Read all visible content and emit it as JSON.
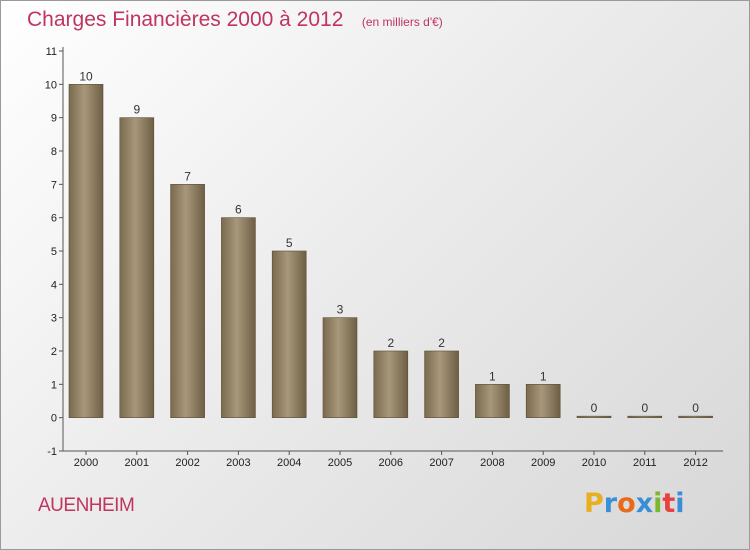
{
  "title": "Charges Financières 2000 à 2012",
  "subtitle": "(en milliers d'€)",
  "commune": "AUENHEIM",
  "brand": {
    "letters": [
      "P",
      "r",
      "o",
      "x",
      "i",
      "t",
      "i"
    ],
    "colors": [
      "#e8b020",
      "#3a8ed8",
      "#e86a1a",
      "#3a8ed8",
      "#7cb82f",
      "#e84040",
      "#3a8ed8"
    ]
  },
  "colors": {
    "accent": "#c0345f",
    "bar_light": "#a8977a",
    "bar_dark": "#6e5f45"
  },
  "chart_data": {
    "type": "bar",
    "categories": [
      "2000",
      "2001",
      "2002",
      "2003",
      "2004",
      "2005",
      "2006",
      "2007",
      "2008",
      "2009",
      "2010",
      "2011",
      "2012"
    ],
    "values": [
      10,
      9,
      7,
      6,
      5,
      3,
      2,
      2,
      1,
      1,
      0,
      0,
      0
    ],
    "data_labels": [
      "10",
      "9",
      "7",
      "6",
      "5",
      "3",
      "2",
      "2",
      "1",
      "1",
      "0",
      "0",
      "0"
    ],
    "yticks": [
      "-1",
      "0",
      "1",
      "2",
      "3",
      "4",
      "5",
      "6",
      "7",
      "8",
      "9",
      "10",
      "11"
    ],
    "ylim": [
      -1,
      11
    ],
    "xlabel": "",
    "ylabel": "",
    "grid": false,
    "legend": "none"
  }
}
